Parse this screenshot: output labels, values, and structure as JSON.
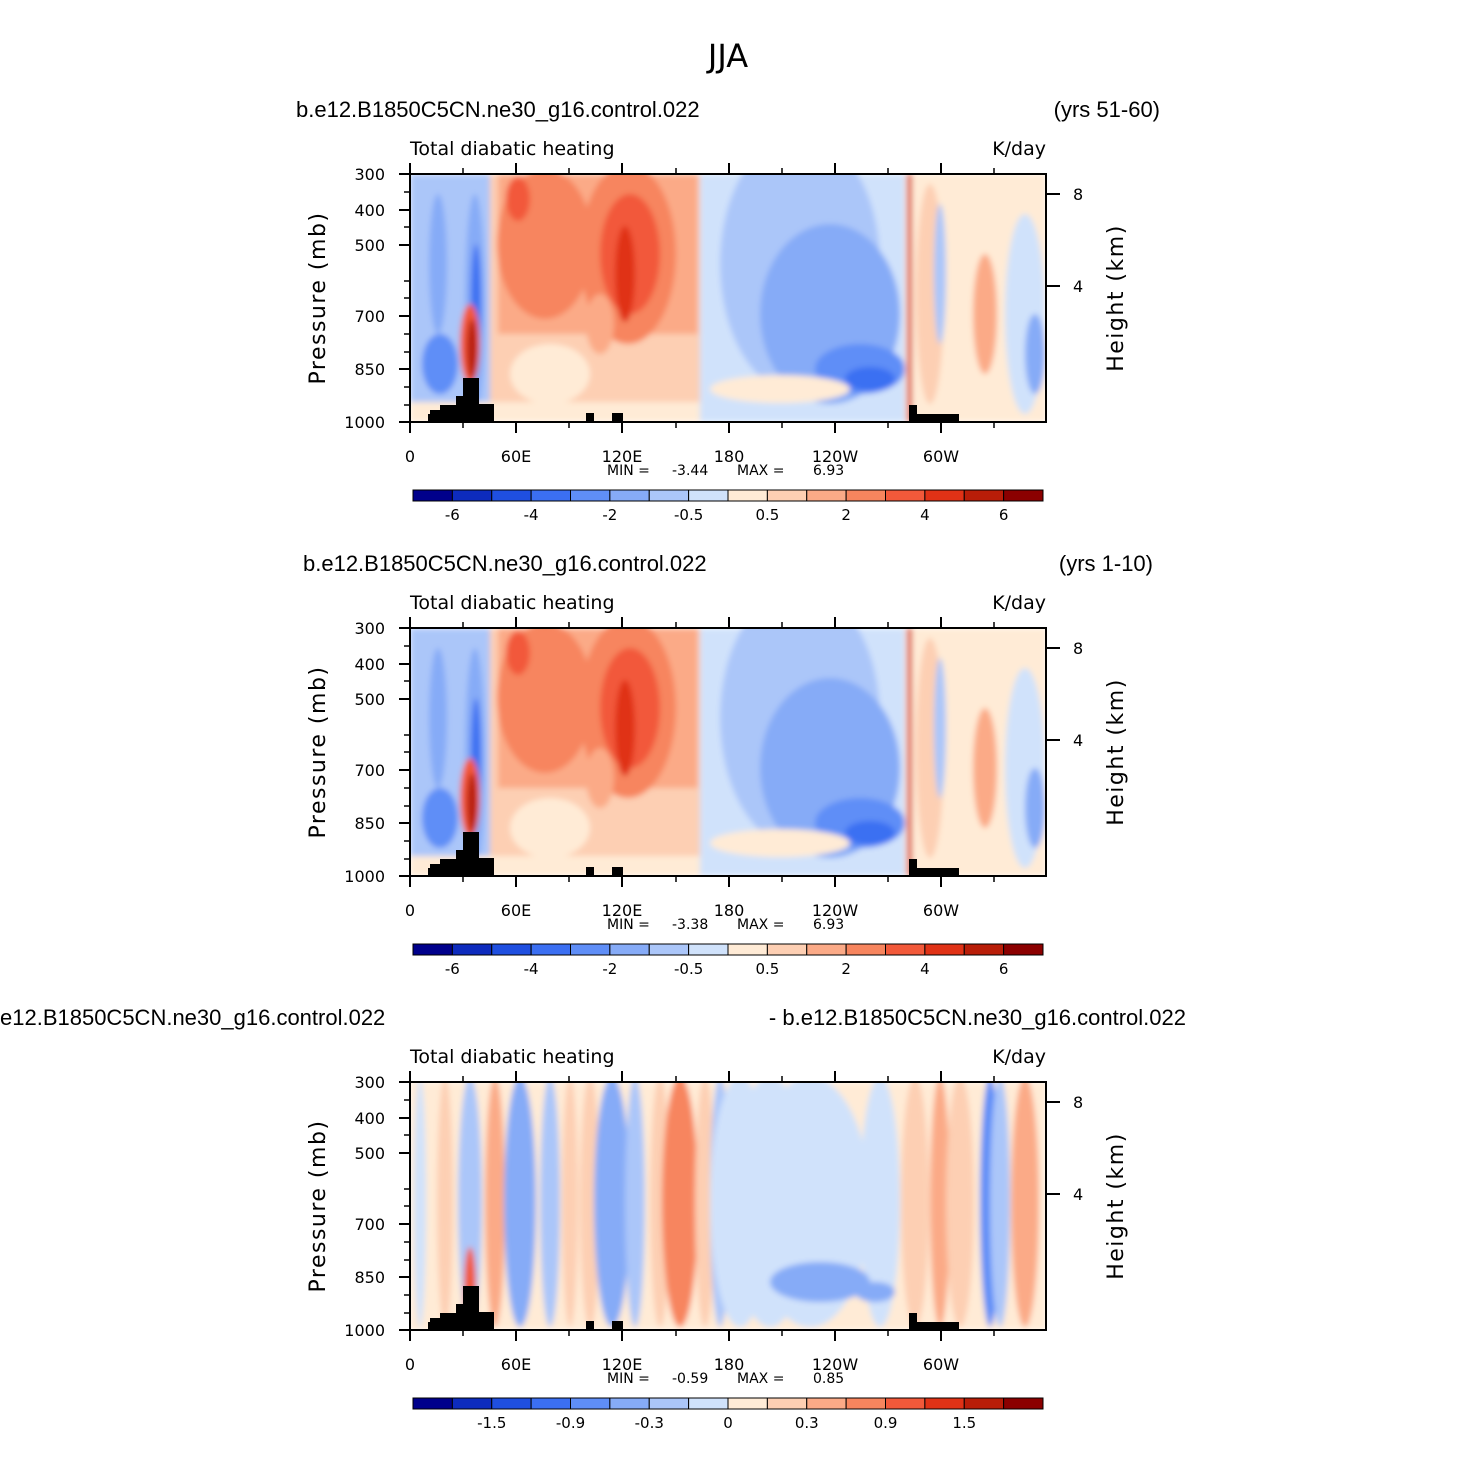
{
  "figure": {
    "title": "JJA"
  },
  "chart_data": [
    {
      "type": "heatmap",
      "left_title": "b.e12.B1850C5CN.ne30_g16.control.022",
      "right_title": "(yrs 51-60)",
      "subtitle": "Total diabatic heating",
      "units": "K/day",
      "ylabel": "Pressure (mb)",
      "ylabel_right": "Height (km)",
      "x_ticks": [
        "0",
        "60E",
        "120E",
        "180",
        "120W",
        "60W"
      ],
      "y_ticks": [
        "300",
        "400",
        "500",
        "700",
        "850",
        "1000"
      ],
      "y_right_ticks": [
        "8",
        "4"
      ],
      "stats": {
        "min_label": "MIN =",
        "min": "-3.44",
        "max_label": "MAX =",
        "max": "6.93"
      },
      "colorbar_labels": [
        "-6",
        "-4",
        "-2",
        "-0.5",
        "0.5",
        "2",
        "4",
        "6"
      ],
      "field": "full"
    },
    {
      "type": "heatmap",
      "left_title": "b.e12.B1850C5CN.ne30_g16.control.022",
      "right_title": "(yrs 1-10)",
      "subtitle": "Total diabatic heating",
      "units": "K/day",
      "ylabel": "Pressure (mb)",
      "ylabel_right": "Height (km)",
      "x_ticks": [
        "0",
        "60E",
        "120E",
        "180",
        "120W",
        "60W"
      ],
      "y_ticks": [
        "300",
        "400",
        "500",
        "700",
        "850",
        "1000"
      ],
      "y_right_ticks": [
        "8",
        "4"
      ],
      "stats": {
        "min_label": "MIN =",
        "min": "-3.38",
        "max_label": "MAX =",
        "max": "6.93"
      },
      "colorbar_labels": [
        "-6",
        "-4",
        "-2",
        "-0.5",
        "0.5",
        "2",
        "4",
        "6"
      ],
      "field": "full"
    },
    {
      "type": "heatmap",
      "left_title": "e12.B1850C5CN.ne30_g16.control.022",
      "right_title": "- b.e12.B1850C5CN.ne30_g16.control.022",
      "subtitle": "Total diabatic heating",
      "units": "K/day",
      "ylabel": "Pressure (mb)",
      "ylabel_right": "Height (km)",
      "x_ticks": [
        "0",
        "60E",
        "120E",
        "180",
        "120W",
        "60W"
      ],
      "y_ticks": [
        "300",
        "400",
        "500",
        "700",
        "850",
        "1000"
      ],
      "y_right_ticks": [
        "8",
        "4"
      ],
      "stats": {
        "min_label": "MIN =",
        "min": "-0.59",
        "max_label": "MAX =",
        "max": "0.85"
      },
      "colorbar_labels": [
        "-1.5",
        "-0.9",
        "-0.3",
        "0",
        "0.3",
        "0.9",
        "1.5"
      ],
      "field": "diff"
    }
  ],
  "palette": [
    "#00008b",
    "#0d2bbd",
    "#1f4fe0",
    "#3b6ff2",
    "#5f8ef7",
    "#86abf7",
    "#abc6f9",
    "#d0e2fb",
    "#ffebd6",
    "#fdcfb3",
    "#fbaa87",
    "#f7855e",
    "#f2593a",
    "#e03216",
    "#b81d08",
    "#8b0000"
  ]
}
